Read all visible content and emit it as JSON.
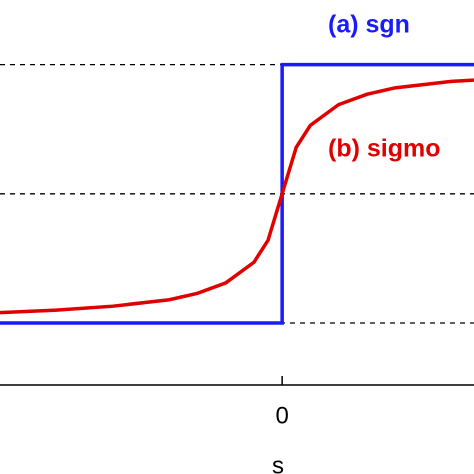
{
  "chart_data": {
    "type": "line",
    "xlabel": "s",
    "annotations": [
      {
        "text": "(a) sgn",
        "color": "#1a1aff"
      },
      {
        "text": "(b) sigmo",
        "color": "#e00000"
      }
    ],
    "series": [
      {
        "color": "#1a1aff",
        "x": [
          -5,
          0,
          0,
          3.4
        ],
        "values": [
          -1,
          -1,
          1,
          1
        ]
      },
      {
        "color": "#e00000",
        "x": [
          -5,
          -4,
          -3,
          -2,
          -1.5,
          -1,
          -0.5,
          -0.25,
          0,
          0.25,
          0.5,
          1,
          1.5,
          2,
          3,
          3.4
        ],
        "values": [
          -0.92,
          -0.9,
          -0.87,
          -0.82,
          -0.77,
          -0.69,
          -0.53,
          -0.36,
          0,
          0.36,
          0.53,
          0.69,
          0.77,
          0.82,
          0.87,
          0.88
        ]
      }
    ],
    "xlim": [
      -5,
      3.4
    ],
    "ylim": [
      -1.48,
      1.5
    ],
    "xticks": [
      0
    ],
    "yticks": [
      -1,
      0,
      1
    ],
    "grid": true
  }
}
